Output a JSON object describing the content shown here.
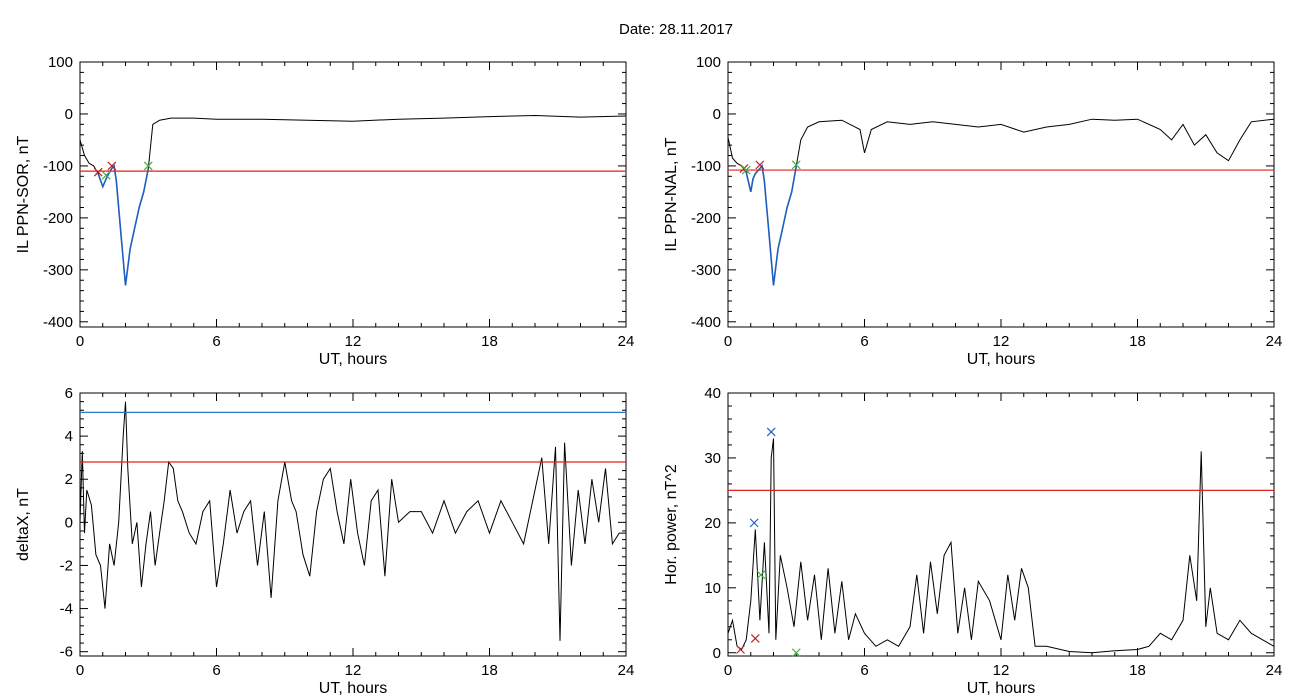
{
  "figure": {
    "title": "Date:  28.11.2017"
  },
  "colors": {
    "trace": "#000000",
    "highlight": "#1f5fbf",
    "threshold": "#e0201c",
    "threshold_blue": "#2f78c8",
    "marker_red": "#c0201c",
    "marker_green": "#3fb13f"
  },
  "chart_data": [
    {
      "id": "sor",
      "type": "line",
      "xlabel": "UT, hours",
      "ylabel": "IL PPN-SOR, nT",
      "xlim": [
        0,
        24
      ],
      "ylim": [
        -410,
        100
      ],
      "xticks": [
        0,
        6,
        12,
        18,
        24
      ],
      "yticks": [
        -400,
        -300,
        -200,
        -100,
        0,
        100
      ],
      "threshold": -110,
      "series": [
        {
          "style": "black",
          "x": [
            0,
            0.2,
            0.4,
            0.6,
            0.8,
            1.0,
            1.1,
            1.2,
            1.4,
            1.5,
            1.6,
            1.8,
            2.0,
            2.2,
            2.4,
            2.6,
            2.8,
            3.0,
            3.2,
            3.5,
            4,
            5,
            6,
            8,
            10,
            12,
            14,
            16,
            18,
            20,
            22,
            24
          ],
          "y": [
            -50,
            -80,
            -95,
            -100,
            -115,
            -140,
            -130,
            -120,
            -105,
            -100,
            -130,
            -230,
            -330,
            -260,
            -220,
            -180,
            -150,
            -105,
            -20,
            -12,
            -8,
            -8,
            -10,
            -10,
            -12,
            -14,
            -10,
            -8,
            -5,
            -3,
            -6,
            -4
          ]
        },
        {
          "style": "blue",
          "x": [
            0.8,
            1.0,
            1.1,
            1.2,
            1.4,
            1.5,
            1.6,
            1.8,
            2.0,
            2.2,
            2.4,
            2.6,
            2.8,
            3.0
          ],
          "y": [
            -115,
            -140,
            -130,
            -120,
            -105,
            -100,
            -130,
            -230,
            -330,
            -260,
            -220,
            -180,
            -150,
            -105
          ]
        }
      ],
      "markers": [
        {
          "x": 0.8,
          "y": -112,
          "color": "red"
        },
        {
          "x": 1.4,
          "y": -100,
          "color": "red"
        },
        {
          "x": 1.15,
          "y": -118,
          "color": "green"
        },
        {
          "x": 3.0,
          "y": -100,
          "color": "green"
        }
      ]
    },
    {
      "id": "nal",
      "type": "line",
      "xlabel": "UT, hours",
      "ylabel": "IL PPN-NAL, nT",
      "xlim": [
        0,
        24
      ],
      "ylim": [
        -410,
        100
      ],
      "xticks": [
        0,
        6,
        12,
        18,
        24
      ],
      "yticks": [
        -400,
        -300,
        -200,
        -100,
        0,
        100
      ],
      "threshold": -108,
      "series": [
        {
          "style": "black",
          "x": [
            0,
            0.2,
            0.4,
            0.6,
            0.8,
            1.0,
            1.1,
            1.2,
            1.4,
            1.5,
            1.6,
            1.8,
            2.0,
            2.2,
            2.4,
            2.6,
            2.8,
            3.0,
            3.2,
            3.5,
            4,
            5,
            5.8,
            6,
            6.3,
            7,
            8,
            9,
            10,
            11,
            12,
            13,
            14,
            15,
            16,
            17,
            18,
            19,
            19.5,
            20,
            20.5,
            21,
            21.5,
            22,
            22.5,
            23,
            24
          ],
          "y": [
            -45,
            -85,
            -95,
            -100,
            -112,
            -150,
            -125,
            -115,
            -105,
            -100,
            -130,
            -230,
            -330,
            -260,
            -220,
            -180,
            -150,
            -100,
            -50,
            -25,
            -15,
            -12,
            -30,
            -75,
            -30,
            -15,
            -20,
            -15,
            -20,
            -25,
            -20,
            -35,
            -25,
            -20,
            -10,
            -12,
            -10,
            -30,
            -50,
            -20,
            -60,
            -40,
            -75,
            -90,
            -50,
            -15,
            -10
          ]
        },
        {
          "style": "blue",
          "x": [
            0.8,
            1.0,
            1.1,
            1.2,
            1.4,
            1.5,
            1.6,
            1.8,
            2.0,
            2.2,
            2.4,
            2.6,
            2.8,
            3.0
          ],
          "y": [
            -112,
            -150,
            -125,
            -115,
            -105,
            -100,
            -130,
            -230,
            -330,
            -260,
            -220,
            -180,
            -150,
            -100
          ]
        }
      ],
      "markers": [
        {
          "x": 0.7,
          "y": -105,
          "color": "red"
        },
        {
          "x": 1.4,
          "y": -98,
          "color": "red"
        },
        {
          "x": 0.8,
          "y": -108,
          "color": "green"
        },
        {
          "x": 3.0,
          "y": -98,
          "color": "green"
        }
      ]
    },
    {
      "id": "deltax",
      "type": "line",
      "xlabel": "UT, hours",
      "ylabel": "deltaX, nT",
      "xlim": [
        0,
        24
      ],
      "ylim": [
        -6.2,
        6
      ],
      "xticks": [
        0,
        6,
        12,
        18,
        24
      ],
      "yticks": [
        -6,
        -4,
        -2,
        0,
        2,
        4,
        6
      ],
      "threshold": 2.8,
      "threshold2": 5.1,
      "series": [
        {
          "style": "black",
          "x": [
            0,
            0.1,
            0.2,
            0.3,
            0.5,
            0.7,
            0.9,
            1.1,
            1.3,
            1.5,
            1.7,
            1.9,
            2.0,
            2.1,
            2.3,
            2.5,
            2.7,
            2.9,
            3.1,
            3.3,
            3.5,
            3.7,
            3.9,
            4.1,
            4.3,
            4.5,
            4.8,
            5.1,
            5.4,
            5.7,
            6.0,
            6.3,
            6.6,
            6.9,
            7.2,
            7.5,
            7.8,
            8.1,
            8.4,
            8.7,
            9.0,
            9.3,
            9.5,
            9.8,
            10.1,
            10.4,
            10.7,
            11.0,
            11.3,
            11.6,
            11.9,
            12.2,
            12.5,
            12.8,
            13.1,
            13.4,
            13.7,
            14.0,
            14.5,
            15,
            15.5,
            16,
            16.5,
            17,
            17.5,
            18,
            18.5,
            19,
            19.5,
            20,
            20.3,
            20.6,
            20.9,
            21.1,
            21.3,
            21.6,
            21.9,
            22.2,
            22.5,
            22.8,
            23.1,
            23.4,
            23.7,
            24
          ],
          "y": [
            0,
            3.3,
            -0.5,
            1.5,
            0.8,
            -1.5,
            -2,
            -4,
            -1,
            -2,
            0,
            4,
            5.6,
            2.5,
            -1,
            0,
            -3,
            -1,
            0.5,
            -2,
            -0.5,
            1,
            2.8,
            2.5,
            1,
            0.5,
            -0.5,
            -1,
            0.5,
            1,
            -3,
            -1,
            1.5,
            -0.5,
            0.5,
            1,
            -2,
            0.5,
            -3.5,
            1,
            2.8,
            1,
            0.5,
            -1.5,
            -2.5,
            0.5,
            2,
            2.5,
            0.5,
            -1,
            2,
            -0.5,
            -2,
            1,
            1.5,
            -2.5,
            2,
            0,
            0.5,
            0.5,
            -0.5,
            1,
            -0.5,
            0.5,
            1,
            -0.5,
            1,
            0,
            -1,
            1.5,
            3,
            -1,
            3.5,
            -5.5,
            3.7,
            -2,
            1.5,
            -1,
            2,
            0,
            2.5,
            -1,
            -0.5,
            -0.5
          ]
        }
      ],
      "markers": []
    },
    {
      "id": "power",
      "type": "line",
      "xlabel": "UT, hours",
      "ylabel": "Hor. power, nT^2",
      "xlim": [
        0,
        24
      ],
      "ylim": [
        -0.5,
        40
      ],
      "xticks": [
        0,
        6,
        12,
        18,
        24
      ],
      "yticks": [
        0,
        10,
        20,
        30,
        40
      ],
      "threshold": 25,
      "series": [
        {
          "style": "black",
          "x": [
            0,
            0.2,
            0.4,
            0.6,
            0.8,
            1.0,
            1.2,
            1.4,
            1.6,
            1.8,
            1.9,
            2.0,
            2.1,
            2.3,
            2.6,
            2.9,
            3.2,
            3.5,
            3.8,
            4.1,
            4.4,
            4.7,
            5.0,
            5.3,
            5.6,
            6.0,
            6.5,
            7,
            7.5,
            8,
            8.3,
            8.6,
            8.9,
            9.2,
            9.5,
            9.8,
            10.1,
            10.4,
            10.7,
            11,
            11.5,
            12,
            12.3,
            12.6,
            12.9,
            13.2,
            13.5,
            14,
            15,
            16,
            17,
            18,
            18.5,
            19,
            19.5,
            20,
            20.3,
            20.6,
            20.8,
            21.0,
            21.2,
            21.5,
            22,
            22.5,
            23,
            23.5,
            24
          ],
          "y": [
            3,
            5,
            1,
            0.5,
            2,
            8,
            19,
            5,
            17,
            3,
            30,
            33,
            2,
            15,
            10,
            4,
            14,
            5,
            12,
            2,
            13,
            3,
            11,
            2,
            6,
            3,
            1,
            2,
            1,
            4,
            12,
            3,
            14,
            6,
            15,
            17,
            3,
            10,
            2,
            11,
            8,
            2,
            12,
            5,
            13,
            10,
            1,
            1,
            0.2,
            0,
            0.3,
            0.5,
            1,
            3,
            2,
            5,
            15,
            8,
            31,
            4,
            10,
            3,
            2,
            5,
            3,
            2,
            1
          ]
        }
      ],
      "markers": [
        {
          "x": 1.15,
          "y": 20,
          "color": "blue"
        },
        {
          "x": 1.9,
          "y": 34,
          "color": "blue"
        },
        {
          "x": 0.55,
          "y": 0.5,
          "color": "red"
        },
        {
          "x": 1.2,
          "y": 2.2,
          "color": "red"
        },
        {
          "x": 1.45,
          "y": 12,
          "color": "green"
        },
        {
          "x": 3.0,
          "y": 0,
          "color": "green"
        }
      ]
    }
  ]
}
